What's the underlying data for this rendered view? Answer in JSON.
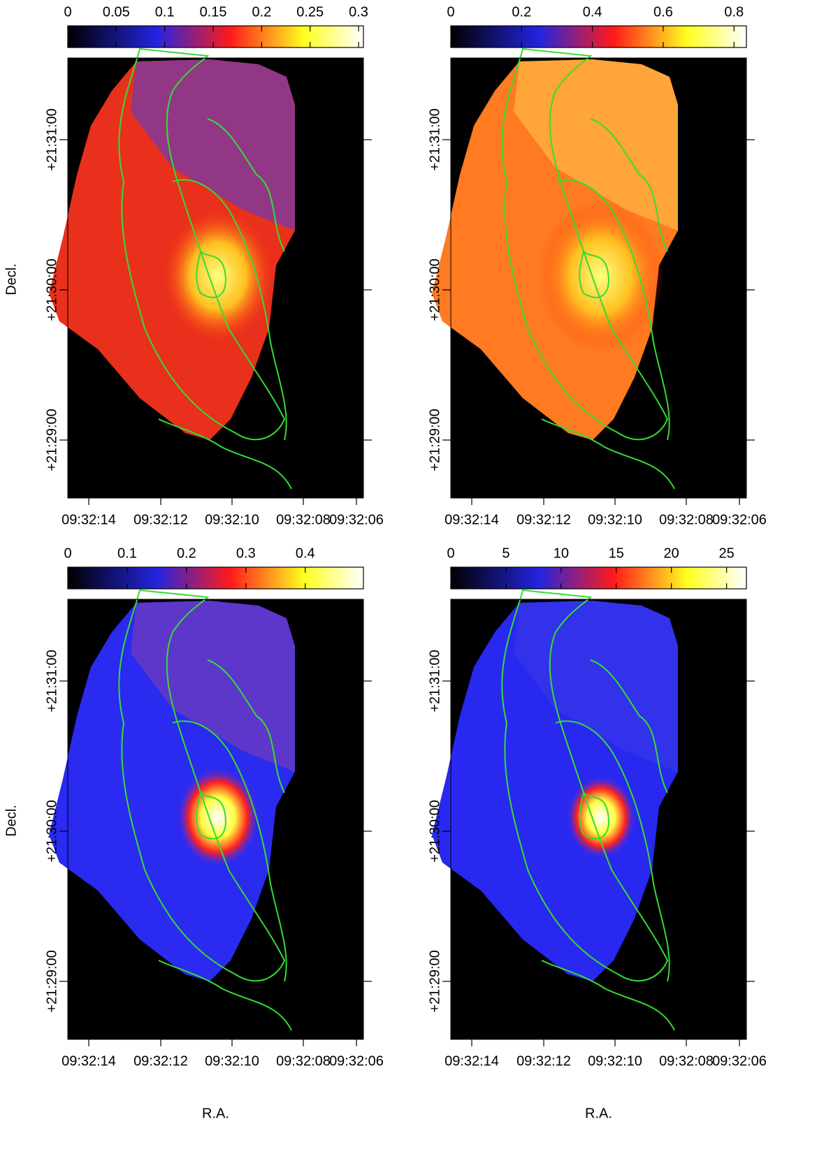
{
  "panels": [
    {
      "colorbar": {
        "lim": [
          0,
          0.305
        ],
        "ticks": [
          0,
          0.05,
          0.1,
          0.15,
          0.2,
          0.25,
          0.3
        ]
      },
      "yticks": [
        "+21:31:00",
        "+21:30:00",
        "+21:29:00"
      ],
      "xticks": [
        "09:32:14",
        "09:32:12",
        "09:32:10",
        "09:32:08",
        "09:32:06"
      ],
      "ylabel": "Decl."
    },
    {
      "colorbar": {
        "lim": [
          0,
          0.835
        ],
        "ticks": [
          0,
          0.2,
          0.4,
          0.6,
          0.8
        ]
      },
      "yticks": [
        "+21:31:00",
        "+21:30:00",
        "+21:29:00"
      ],
      "xticks": [
        "09:32:14",
        "09:32:12",
        "09:32:10",
        "09:32:08",
        "09:32:06"
      ]
    },
    {
      "colorbar": {
        "lim": [
          0,
          0.498
        ],
        "ticks": [
          0,
          0.1,
          0.2,
          0.3,
          0.4
        ]
      },
      "yticks": [
        "+21:31:00",
        "+21:30:00",
        "+21:29:00"
      ],
      "xticks": [
        "09:32:14",
        "09:32:12",
        "09:32:10",
        "09:32:08",
        "09:32:06"
      ],
      "ylabel": "Decl.",
      "xlabel": "R.A."
    },
    {
      "colorbar": {
        "lim": [
          0,
          26.8
        ],
        "ticks": [
          0,
          5,
          10,
          15,
          20,
          25
        ]
      },
      "yticks": [
        "+21:31:00",
        "+21:30:00",
        "+21:29:00"
      ],
      "xticks": [
        "09:32:14",
        "09:32:12",
        "09:32:10",
        "09:32:08",
        "09:32:06"
      ],
      "xlabel": "R.A."
    }
  ]
}
